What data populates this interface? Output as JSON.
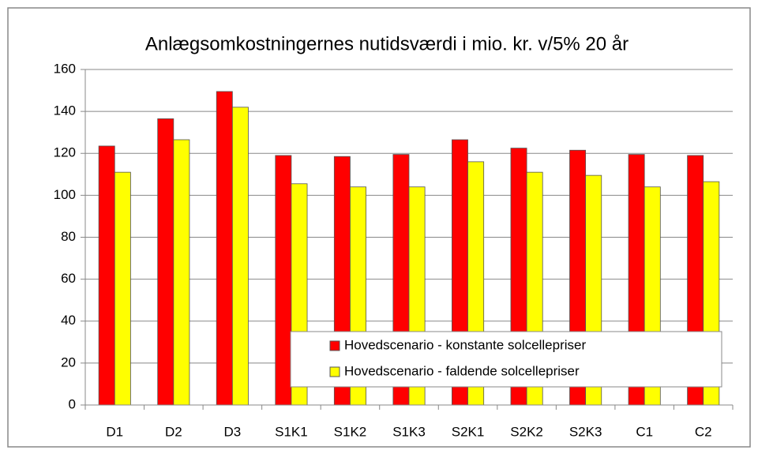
{
  "chart_data": {
    "type": "bar",
    "title": "Anlægsomkostningernes nutidsværdi i mio. kr. v/5% 20 år",
    "categories": [
      "D1",
      "D2",
      "D3",
      "S1K1",
      "S1K2",
      "S1K3",
      "S2K1",
      "S2K2",
      "S2K3",
      "C1",
      "C2"
    ],
    "series": [
      {
        "name": "Hovedscenario - konstante solcellepriser",
        "color": "#ff0000",
        "values": [
          123.5,
          136.5,
          149.5,
          119,
          118.5,
          119.5,
          126.5,
          122.5,
          121.5,
          119.5,
          119
        ]
      },
      {
        "name": "Hovedscenario - faldende solcellepriser",
        "color": "#ffff00",
        "values": [
          111,
          126.5,
          142,
          105.5,
          104,
          104,
          116,
          111,
          109.5,
          104,
          106.5
        ]
      }
    ],
    "ylim": [
      0,
      160
    ],
    "yticks": [
      0,
      20,
      40,
      60,
      80,
      100,
      120,
      140,
      160
    ],
    "grid": true,
    "legend": "lower right"
  }
}
